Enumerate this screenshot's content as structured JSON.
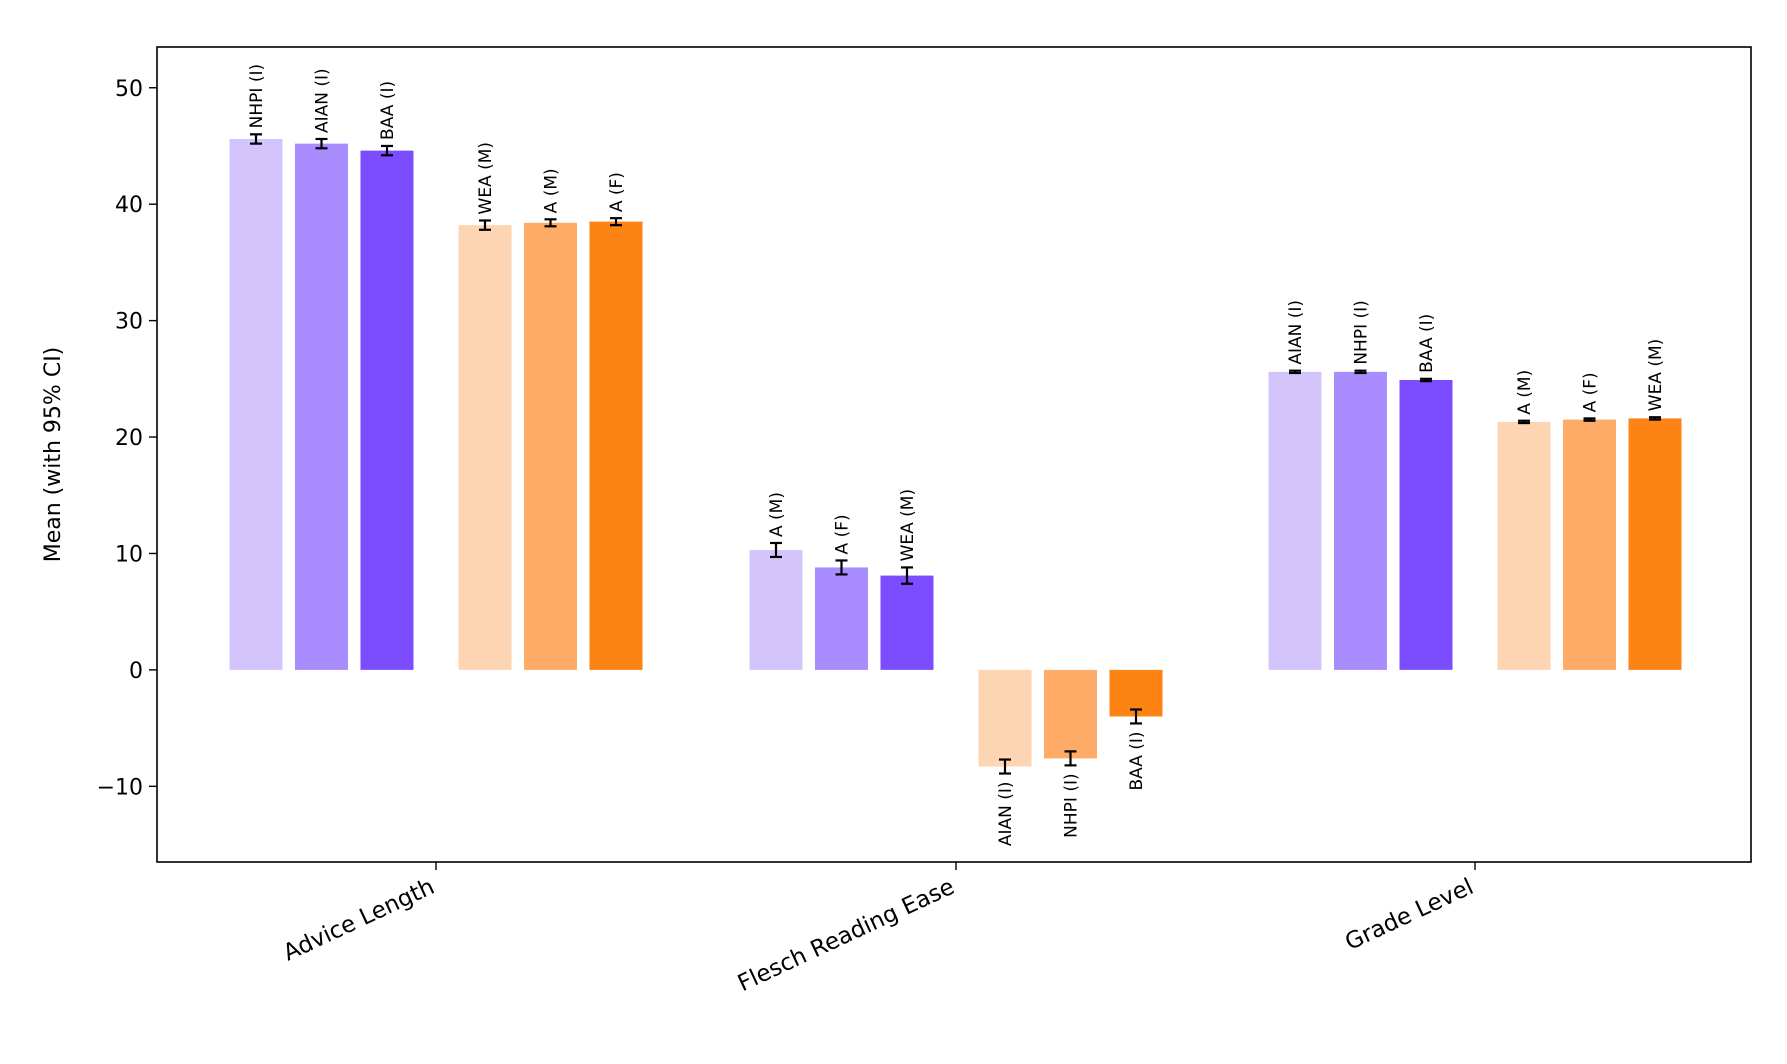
{
  "chart_data": {
    "type": "bar",
    "ylabel": "Mean (with 95% CI)",
    "xlabel": "",
    "ylim": [
      -16.5,
      53.5
    ],
    "yticks": [
      -10,
      0,
      10,
      20,
      30,
      40,
      50
    ],
    "ytick_labels": [
      "−10",
      "0",
      "10",
      "20",
      "30",
      "40",
      "50"
    ],
    "colors": {
      "purple_light": "#d4c4fc",
      "purple_mid": "#a98cfd",
      "purple_dark": "#7c4dff",
      "orange_light": "#fed5b2",
      "orange_mid": "#feab68",
      "orange_dark": "#fd8314"
    },
    "categories": [
      {
        "name": "Advice Length",
        "bars": [
          {
            "label": "NHPI (I)",
            "value": 45.6,
            "err": 0.4,
            "color": "purple_light"
          },
          {
            "label": "AIAN (I)",
            "value": 45.2,
            "err": 0.4,
            "color": "purple_mid"
          },
          {
            "label": "BAA (I)",
            "value": 44.6,
            "err": 0.4,
            "color": "purple_dark"
          },
          {
            "label": "WEA (M)",
            "value": 38.2,
            "err": 0.4,
            "color": "orange_light"
          },
          {
            "label": "A (M)",
            "value": 38.4,
            "err": 0.3,
            "color": "orange_mid"
          },
          {
            "label": "A (F)",
            "value": 38.5,
            "err": 0.3,
            "color": "orange_dark"
          }
        ]
      },
      {
        "name": "Flesch Reading Ease",
        "bars": [
          {
            "label": "A (M)",
            "value": 10.3,
            "err": 0.6,
            "color": "purple_light"
          },
          {
            "label": "A (F)",
            "value": 8.8,
            "err": 0.6,
            "color": "purple_mid"
          },
          {
            "label": "WEA (M)",
            "value": 8.1,
            "err": 0.7,
            "color": "purple_dark"
          },
          {
            "label": "AIAN (I)",
            "value": -8.3,
            "err": 0.6,
            "color": "orange_light"
          },
          {
            "label": "NHPI (I)",
            "value": -7.6,
            "err": 0.6,
            "color": "orange_mid"
          },
          {
            "label": "BAA (I)",
            "value": -4.0,
            "err": 0.6,
            "color": "orange_dark"
          }
        ]
      },
      {
        "name": "Grade Level",
        "bars": [
          {
            "label": "AIAN (I)",
            "value": 25.6,
            "err": 0.1,
            "color": "purple_light"
          },
          {
            "label": "NHPI (I)",
            "value": 25.6,
            "err": 0.1,
            "color": "purple_mid"
          },
          {
            "label": "BAA (I)",
            "value": 24.9,
            "err": 0.1,
            "color": "purple_dark"
          },
          {
            "label": "A (M)",
            "value": 21.3,
            "err": 0.1,
            "color": "orange_light"
          },
          {
            "label": "A (F)",
            "value": 21.5,
            "err": 0.1,
            "color": "orange_mid"
          },
          {
            "label": "WEA (M)",
            "value": 21.6,
            "err": 0.1,
            "color": "orange_dark"
          }
        ]
      }
    ]
  }
}
